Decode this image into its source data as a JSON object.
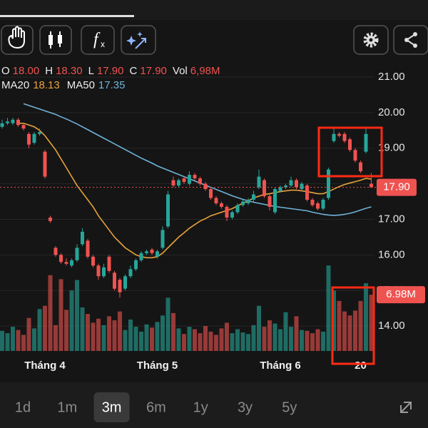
{
  "toolbar": {
    "buttons": [
      "hand",
      "candles",
      "fx",
      "ai"
    ],
    "right": [
      "settings",
      "share"
    ]
  },
  "info": {
    "ohlc": [
      {
        "label": "O",
        "value": "18.00"
      },
      {
        "label": "H",
        "value": "18.30"
      },
      {
        "label": "L",
        "value": "17.90"
      },
      {
        "label": "C",
        "value": "17.90"
      },
      {
        "label": "Vol",
        "value": "6,98M"
      }
    ],
    "ma_values": [
      "18.13",
      "17.35"
    ]
  },
  "chart_data": {
    "type": "candlestick",
    "categories": [
      null,
      null,
      null,
      null,
      null,
      null,
      null,
      null,
      "Tháng 4",
      null,
      null,
      null,
      null,
      null,
      null,
      null,
      null,
      null,
      null,
      null,
      null,
      null,
      null,
      null,
      null,
      null,
      null,
      null,
      null,
      "Tháng 5",
      null,
      null,
      null,
      null,
      null,
      null,
      null,
      null,
      null,
      null,
      null,
      null,
      null,
      null,
      null,
      null,
      null,
      null,
      null,
      null,
      null,
      null,
      "Tháng 6",
      null,
      null,
      null,
      null,
      null,
      null,
      null,
      null,
      null,
      null,
      null,
      null,
      null,
      null,
      "20",
      null,
      null
    ],
    "open": [
      19.6,
      19.7,
      19.7,
      19.8,
      19.65,
      19.4,
      19.15,
      19.4,
      18.9,
      17.05,
      16.2,
      16.0,
      15.8,
      15.7,
      15.85,
      16.3,
      16.4,
      15.95,
      15.7,
      15.4,
      15.95,
      15.5,
      15.3,
      15.05,
      15.4,
      15.6,
      15.85,
      16.05,
      16.15,
      15.95,
      16.2,
      16.8,
      18.1,
      17.95,
      18.15,
      18.0,
      18.25,
      18.15,
      18.0,
      17.85,
      17.6,
      17.45,
      17.35,
      17.05,
      17.2,
      17.4,
      17.45,
      17.55,
      17.9,
      18.1,
      17.65,
      17.2,
      17.8,
      17.9,
      17.95,
      18.1,
      17.85,
      17.95,
      17.55,
      17.45,
      17.3,
      17.6,
      19.2,
      19.4,
      19.4,
      19.25,
      18.95,
      18.6,
      18.9,
      18.0
    ],
    "high": [
      19.8,
      19.85,
      19.85,
      19.85,
      19.7,
      19.45,
      19.45,
      19.55,
      18.95,
      17.1,
      16.25,
      16.05,
      15.9,
      15.9,
      16.3,
      16.75,
      16.45,
      16.0,
      15.75,
      15.75,
      16.0,
      15.55,
      15.35,
      15.45,
      15.7,
      15.9,
      16.1,
      16.15,
      16.2,
      16.15,
      16.8,
      17.8,
      18.2,
      18.15,
      18.2,
      18.35,
      18.3,
      18.2,
      18.05,
      17.9,
      17.65,
      17.5,
      17.4,
      17.25,
      17.45,
      17.55,
      17.6,
      17.8,
      18.4,
      18.15,
      17.7,
      17.9,
      17.95,
      18.0,
      18.2,
      18.15,
      18.05,
      18.0,
      17.6,
      17.5,
      17.6,
      18.45,
      19.55,
      19.45,
      19.45,
      19.3,
      19.0,
      18.65,
      19.55,
      18.3
    ],
    "low": [
      19.55,
      19.65,
      19.65,
      19.6,
      19.5,
      19.0,
      19.1,
      19.35,
      18.15,
      16.9,
      15.95,
      15.75,
      15.7,
      15.65,
      15.8,
      16.25,
      15.9,
      15.65,
      15.3,
      15.35,
      15.5,
      15.0,
      14.8,
      15.0,
      15.35,
      15.55,
      15.8,
      16.0,
      16.0,
      15.9,
      16.15,
      16.75,
      17.9,
      17.9,
      18.0,
      17.95,
      18.1,
      17.95,
      17.8,
      17.55,
      17.4,
      17.3,
      16.95,
      17.0,
      17.15,
      17.35,
      17.4,
      17.5,
      17.85,
      17.6,
      17.25,
      17.15,
      17.75,
      17.85,
      17.9,
      17.85,
      17.8,
      17.5,
      17.35,
      17.25,
      17.25,
      17.55,
      19.15,
      19.3,
      19.15,
      18.9,
      18.6,
      18.3,
      18.85,
      17.9
    ],
    "close": [
      19.7,
      19.75,
      19.8,
      19.65,
      19.55,
      19.1,
      19.4,
      19.45,
      18.2,
      16.95,
      16.0,
      15.8,
      15.75,
      15.85,
      16.2,
      16.65,
      15.95,
      15.7,
      15.4,
      15.65,
      15.55,
      15.05,
      14.95,
      15.4,
      15.6,
      15.85,
      16.05,
      16.1,
      16.05,
      16.1,
      16.7,
      17.7,
      17.95,
      18.1,
      18.05,
      18.25,
      18.15,
      18.0,
      17.85,
      17.6,
      17.45,
      17.35,
      17.05,
      17.2,
      17.4,
      17.5,
      17.55,
      17.7,
      18.2,
      17.65,
      17.35,
      17.85,
      17.9,
      17.95,
      18.1,
      17.9,
      18.0,
      17.55,
      17.4,
      17.3,
      17.55,
      18.4,
      19.4,
      19.35,
      19.2,
      18.95,
      18.65,
      18.35,
      19.4,
      17.9
    ],
    "volume": [
      2.5,
      2.2,
      3.0,
      2.6,
      2.0,
      4.1,
      2.8,
      5.2,
      5.6,
      9.4,
      3.2,
      8.9,
      5.1,
      7.5,
      8.8,
      5.4,
      4.6,
      3.5,
      4.0,
      3.2,
      4.3,
      3.8,
      4.9,
      2.6,
      3.9,
      3.0,
      2.4,
      3.3,
      2.9,
      3.6,
      4.4,
      6.6,
      4.7,
      2.8,
      2.1,
      3.0,
      2.7,
      2.2,
      3.1,
      2.4,
      2.0,
      2.8,
      3.5,
      2.2,
      2.7,
      2.3,
      2.1,
      3.2,
      5.6,
      3.0,
      3.8,
      3.4,
      2.7,
      4.8,
      3.0,
      4.3,
      2.6,
      2.5,
      2.2,
      2.7,
      2.4,
      10.6,
      7.5,
      6.2,
      4.9,
      4.4,
      5.0,
      6.2,
      8.4,
      6.98
    ],
    "series": [
      {
        "name": "MA20",
        "color": "#e8a23a",
        "values": [
          null,
          null,
          null,
          19.7,
          19.7,
          19.65,
          19.6,
          19.5,
          19.35,
          19.15,
          18.95,
          18.7,
          18.45,
          18.2,
          17.95,
          17.75,
          17.55,
          17.35,
          17.1,
          16.9,
          16.7,
          16.5,
          16.35,
          16.2,
          16.1,
          16.0,
          15.95,
          15.92,
          15.92,
          15.95,
          16.05,
          16.2,
          16.35,
          16.5,
          16.62,
          16.75,
          16.85,
          16.95,
          17.02,
          17.1,
          17.15,
          17.2,
          17.25,
          17.3,
          17.38,
          17.45,
          17.52,
          17.6,
          17.65,
          17.7,
          17.72,
          17.75,
          17.78,
          17.8,
          17.82,
          17.82,
          17.8,
          17.78,
          17.75,
          17.72,
          17.72,
          17.78,
          17.85,
          17.92,
          17.98,
          18.02,
          18.06,
          18.1,
          18.15,
          18.13
        ]
      },
      {
        "name": "MA50",
        "color": "#6fb3d9",
        "values": [
          null,
          null,
          null,
          null,
          20.25,
          20.2,
          20.15,
          20.1,
          20.05,
          20.0,
          19.95,
          19.88,
          19.82,
          19.75,
          19.68,
          19.6,
          19.52,
          19.44,
          19.36,
          19.28,
          19.2,
          19.12,
          19.04,
          18.96,
          18.88,
          18.8,
          18.72,
          18.65,
          18.58,
          18.5,
          18.44,
          18.38,
          18.32,
          18.26,
          18.2,
          18.14,
          18.08,
          18.02,
          17.96,
          17.9,
          17.84,
          17.78,
          17.72,
          17.66,
          17.61,
          17.56,
          17.52,
          17.48,
          17.45,
          17.42,
          17.39,
          17.36,
          17.34,
          17.32,
          17.3,
          17.28,
          17.26,
          17.24,
          17.2,
          17.17,
          17.14,
          17.12,
          17.11,
          17.12,
          17.14,
          17.17,
          17.21,
          17.26,
          17.31,
          17.35
        ]
      }
    ],
    "up_color": "#26a69a",
    "down_color": "#ef5350",
    "ylim": [
      13.24,
      21.46
    ],
    "yticks": [
      {
        "value": 14,
        "label": "14.00"
      },
      {
        "value": 15,
        "label": "15.00"
      },
      {
        "value": 16,
        "label": "16.00"
      },
      {
        "value": 17,
        "label": "17.00"
      },
      {
        "value": 18,
        "label": "18.00"
      },
      {
        "value": 19,
        "label": "19.00"
      },
      {
        "value": 20,
        "label": "20.00"
      },
      {
        "value": 21,
        "label": "21.00"
      }
    ],
    "y2lim": [
      0,
      36
    ],
    "grid": true,
    "last_price_label": "17.90",
    "last_volume_label": "6.98M"
  },
  "ranges": {
    "items": [
      "1d",
      "1m",
      "3m",
      "6m",
      "1y",
      "3y",
      "5y"
    ],
    "selected": 2
  }
}
